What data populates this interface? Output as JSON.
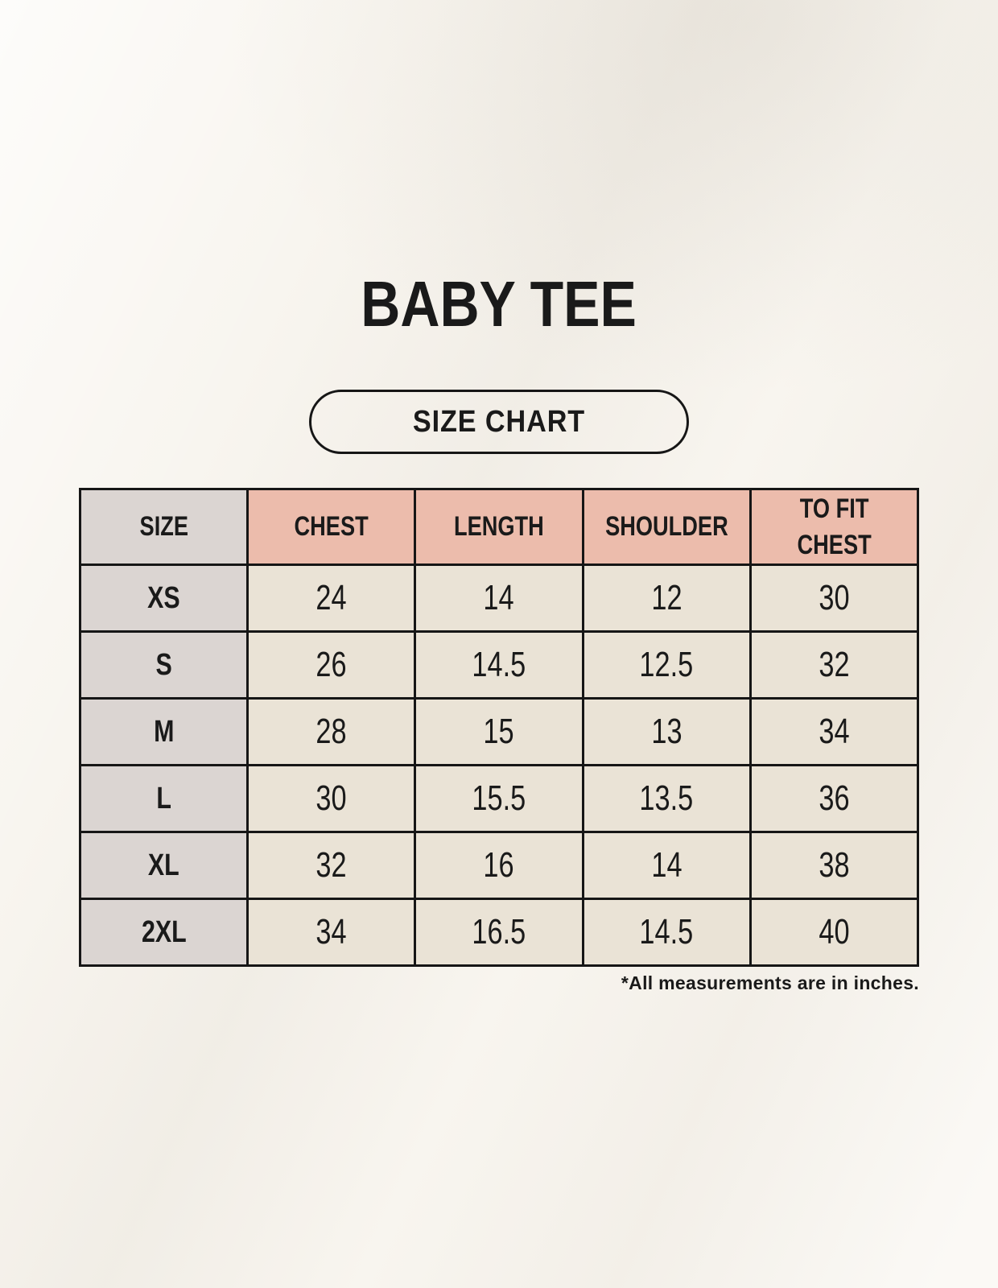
{
  "page": {
    "size_chart_label": "SIZE CHART"
  },
  "colors": {
    "background": "#f8f5ef",
    "header_pink": "#ecbcac",
    "size_column_gray": "#dbd5d2",
    "cell_beige": "#eae3d6",
    "border": "#161616",
    "text": "#1a1a1a"
  },
  "chart_data": {
    "type": "table",
    "title": "BABY TEE",
    "columns": [
      "SIZE",
      "CHEST",
      "LENGTH",
      "SHOULDER",
      "TO FIT CHEST"
    ],
    "rows": [
      [
        "XS",
        "24",
        "14",
        "12",
        "30"
      ],
      [
        "S",
        "26",
        "14.5",
        "12.5",
        "32"
      ],
      [
        "M",
        "28",
        "15",
        "13",
        "34"
      ],
      [
        "L",
        "30",
        "15.5",
        "13.5",
        "36"
      ],
      [
        "XL",
        "32",
        "16",
        "14",
        "38"
      ],
      [
        "2XL",
        "34",
        "16.5",
        "14.5",
        "40"
      ]
    ],
    "units_note": "*All measurements are in inches."
  }
}
